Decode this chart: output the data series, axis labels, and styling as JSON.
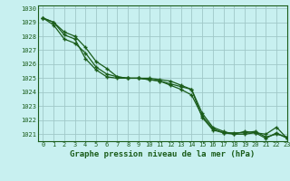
{
  "title": "Graphe pression niveau de la mer (hPa)",
  "bg_color": "#c8f0f0",
  "grid_color": "#a0c8c8",
  "line_color": "#1a5c1a",
  "xlim": [
    -0.5,
    23
  ],
  "ylim": [
    1020.5,
    1030.2
  ],
  "yticks": [
    1021,
    1022,
    1023,
    1024,
    1025,
    1026,
    1027,
    1028,
    1029,
    1030
  ],
  "xticks": [
    0,
    1,
    2,
    3,
    4,
    5,
    6,
    7,
    8,
    9,
    10,
    11,
    12,
    13,
    14,
    15,
    16,
    17,
    18,
    19,
    20,
    21,
    22,
    23
  ],
  "line1": [
    1029.3,
    1029.0,
    1028.3,
    1028.0,
    1027.2,
    1026.2,
    1025.7,
    1025.1,
    1025.0,
    1025.0,
    1024.9,
    1024.8,
    1024.6,
    1024.4,
    1024.2,
    1022.2,
    1021.3,
    1021.1,
    1021.1,
    1021.1,
    1021.2,
    1020.8,
    1021.0,
    1020.8
  ],
  "line2": [
    1029.3,
    1028.8,
    1027.8,
    1027.5,
    1026.8,
    1025.8,
    1025.3,
    1025.1,
    1025.0,
    1025.0,
    1025.0,
    1024.9,
    1024.8,
    1024.5,
    1024.2,
    1022.5,
    1021.5,
    1021.2,
    1021.0,
    1021.0,
    1021.1,
    1020.7,
    1021.1,
    1020.7
  ],
  "line3": [
    1029.3,
    1029.0,
    1028.1,
    1027.8,
    1026.4,
    1025.6,
    1025.1,
    1025.0,
    1025.0,
    1025.0,
    1024.9,
    1024.8,
    1024.5,
    1024.2,
    1023.8,
    1022.3,
    1021.4,
    1021.1,
    1021.0,
    1021.2,
    1021.1,
    1021.0,
    1021.5,
    1020.7
  ],
  "tick_fontsize": 5,
  "xlabel_fontsize": 6.5
}
